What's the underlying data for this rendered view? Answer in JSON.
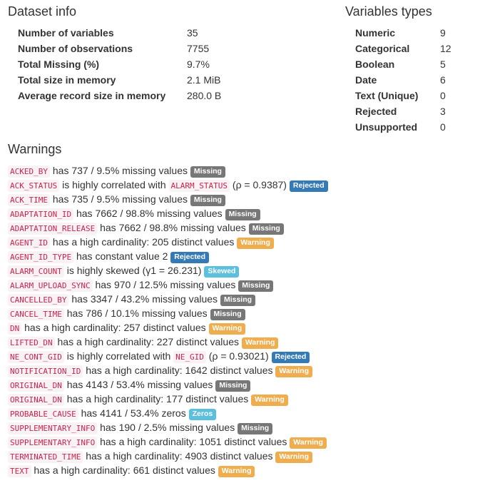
{
  "dataset_info": {
    "title": "Dataset info",
    "rows": [
      {
        "label": "Number of variables",
        "value": "35"
      },
      {
        "label": "Number of observations",
        "value": "7755"
      },
      {
        "label": "Total Missing (%)",
        "value": "9.7%"
      },
      {
        "label": "Total size in memory",
        "value": "2.1 MiB"
      },
      {
        "label": "Average record size in memory",
        "value": "280.0 B"
      }
    ]
  },
  "variable_types": {
    "title": "Variables types",
    "rows": [
      {
        "label": "Numeric",
        "value": "9"
      },
      {
        "label": "Categorical",
        "value": "12"
      },
      {
        "label": "Boolean",
        "value": "5"
      },
      {
        "label": "Date",
        "value": "6"
      },
      {
        "label": "Text (Unique)",
        "value": "0"
      },
      {
        "label": "Rejected",
        "value": "3"
      },
      {
        "label": "Unsupported",
        "value": "0"
      }
    ]
  },
  "badge_colors": {
    "Missing": "#777777",
    "Rejected": "#337ab7",
    "Warning": "#f0ad4e",
    "Skewed": "#5bc0de",
    "Zeros": "#5bc0de"
  },
  "warnings": {
    "title": "Warnings",
    "items": [
      {
        "variable": "ACKED_BY",
        "text": "has 737 / 9.5% missing values",
        "badge": "Missing"
      },
      {
        "variable": "ACK_STATUS",
        "text": "is highly correlated with",
        "variable2": "ALARM_STATUS",
        "text2": "(ρ = 0.9387)",
        "badge": "Rejected"
      },
      {
        "variable": "ACK_TIME",
        "text": "has 735 / 9.5% missing values",
        "badge": "Missing"
      },
      {
        "variable": "ADAPTATION_ID",
        "text": "has 7662 / 98.8% missing values",
        "badge": "Missing"
      },
      {
        "variable": "ADAPTATION_RELEASE",
        "text": "has 7662 / 98.8% missing values",
        "badge": "Missing"
      },
      {
        "variable": "AGENT_ID",
        "text": "has a high cardinality: 205 distinct values",
        "badge": "Warning"
      },
      {
        "variable": "AGENT_ID_TYPE",
        "text": "has constant value 2",
        "badge": "Rejected"
      },
      {
        "variable": "ALARM_COUNT",
        "text": "is highly skewed (γ1 = 26.231)",
        "badge": "Skewed"
      },
      {
        "variable": "ALARM_UPLOAD_SYNC",
        "text": "has 970 / 12.5% missing values",
        "badge": "Missing"
      },
      {
        "variable": "CANCELLED_BY",
        "text": "has 3347 / 43.2% missing values",
        "badge": "Missing"
      },
      {
        "variable": "CANCEL_TIME",
        "text": "has 786 / 10.1% missing values",
        "badge": "Missing"
      },
      {
        "variable": "DN",
        "text": "has a high cardinality: 257 distinct values",
        "badge": "Warning"
      },
      {
        "variable": "LIFTED_DN",
        "text": "has a high cardinality: 227 distinct values",
        "badge": "Warning"
      },
      {
        "variable": "NE_CONT_GID",
        "text": "is highly correlated with",
        "variable2": "NE_GID",
        "text2": "(ρ = 0.93021)",
        "badge": "Rejected"
      },
      {
        "variable": "NOTIFICATION_ID",
        "text": "has a high cardinality: 1642 distinct values",
        "badge": "Warning"
      },
      {
        "variable": "ORIGINAL_DN",
        "text": "has 4143 / 53.4% missing values",
        "badge": "Missing"
      },
      {
        "variable": "ORIGINAL_DN",
        "text": "has a high cardinality: 177 distinct values",
        "badge": "Warning"
      },
      {
        "variable": "PROBABLE_CAUSE",
        "text": "has 4141 / 53.4% zeros",
        "badge": "Zeros"
      },
      {
        "variable": "SUPPLEMENTARY_INFO",
        "text": "has 190 / 2.5% missing values",
        "badge": "Missing"
      },
      {
        "variable": "SUPPLEMENTARY_INFO",
        "text": "has a high cardinality: 1051 distinct values",
        "badge": "Warning"
      },
      {
        "variable": "TERMINATED_TIME",
        "text": "has a high cardinality: 4903 distinct values",
        "badge": "Warning"
      },
      {
        "variable": "TEXT",
        "text": "has a high cardinality: 661 distinct values",
        "badge": "Warning"
      }
    ]
  }
}
